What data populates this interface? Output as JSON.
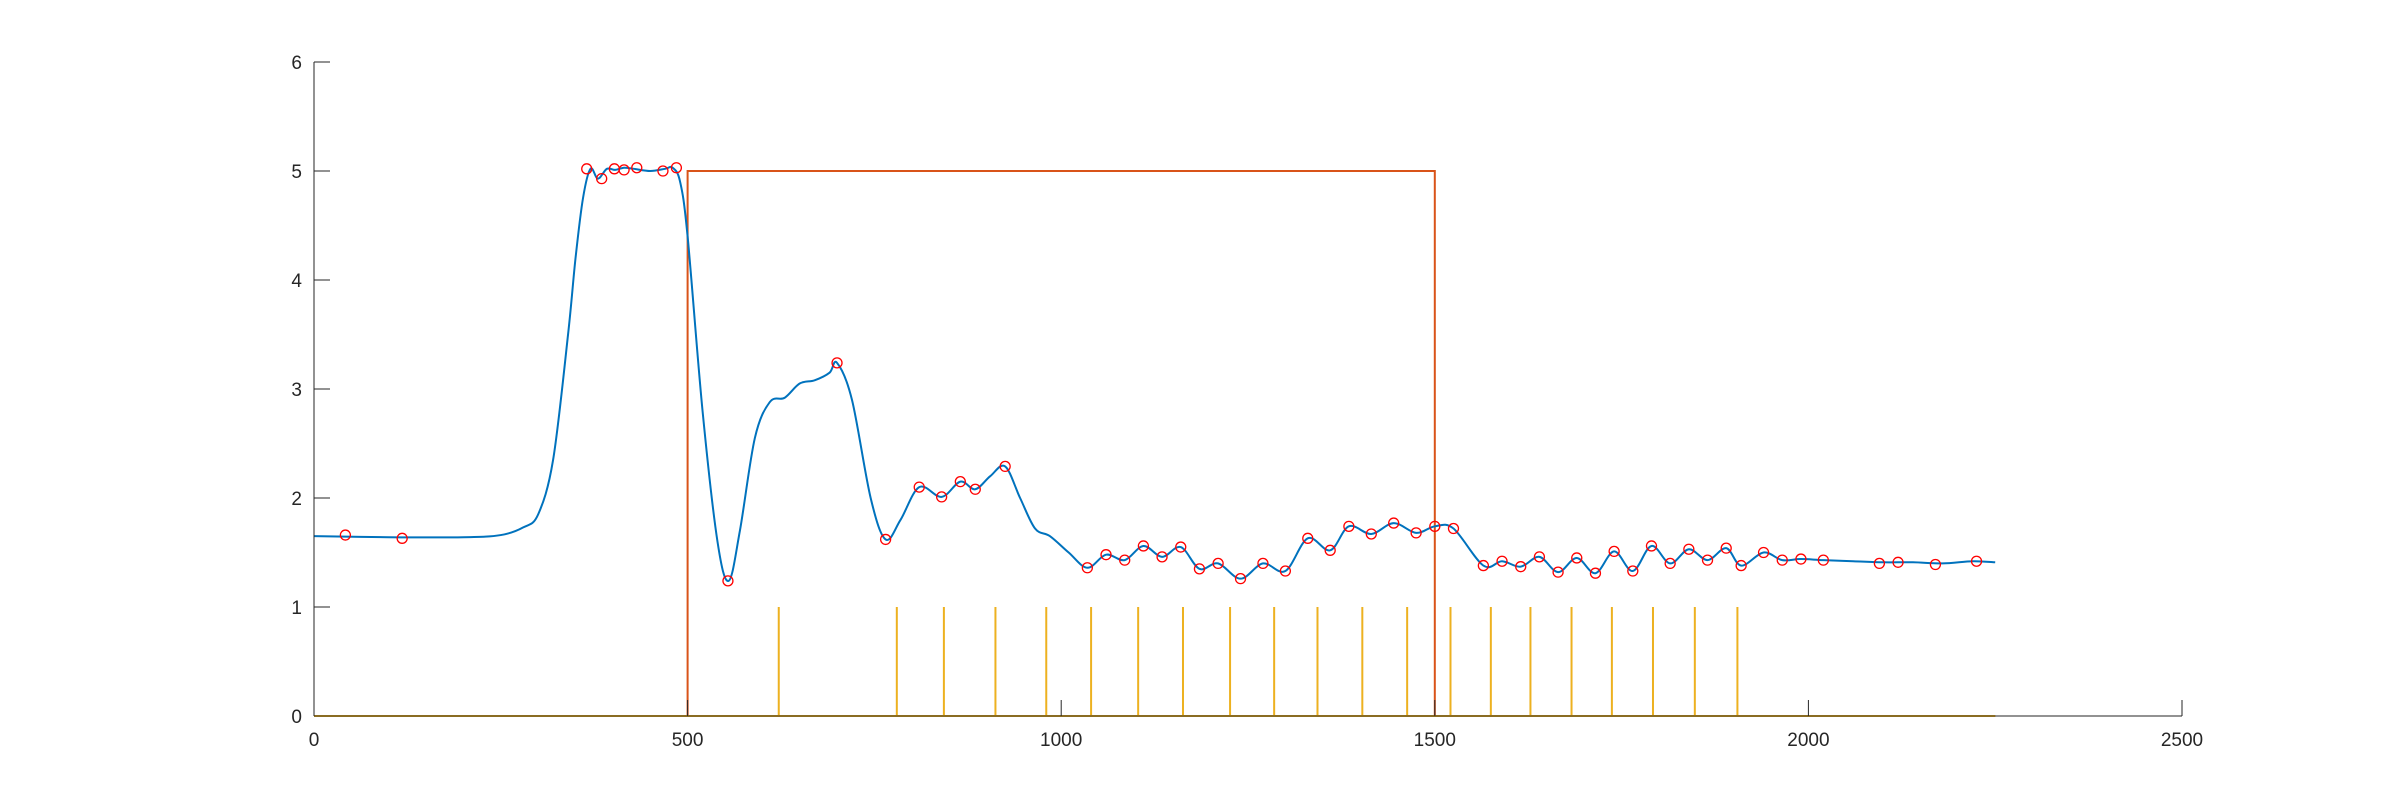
{
  "chart_data": {
    "type": "line",
    "title": "",
    "xlabel": "",
    "ylabel": "",
    "xlim": [
      0,
      2500
    ],
    "ylim": [
      0,
      6
    ],
    "x_ticks": [
      "0",
      "500",
      "1000",
      "1500",
      "2000",
      "2500"
    ],
    "y_ticks": [
      "0",
      "1",
      "2",
      "3",
      "4",
      "5",
      "6"
    ],
    "grid": false,
    "legend": "none",
    "colors": {
      "signal": "#0072BD",
      "gate": "#D95319",
      "spikes": "#EDB120",
      "markers": "#FF0000",
      "axis": "#262626"
    },
    "series": [
      {
        "kind": "smooth-line",
        "color_key": "signal",
        "x": [
          0,
          100,
          200,
          250,
          280,
          300,
          320,
          340,
          350,
          360,
          370,
          380,
          392,
          403,
          415,
          428,
          450,
          470,
          480,
          490,
          500,
          520,
          540,
          555,
          570,
          590,
          610,
          630,
          650,
          670,
          690,
          700,
          720,
          745,
          765,
          785,
          810,
          840,
          865,
          885,
          905,
          925,
          945,
          965,
          985,
          1010,
          1035,
          1060,
          1085,
          1110,
          1135,
          1160,
          1185,
          1210,
          1240,
          1270,
          1300,
          1330,
          1360,
          1385,
          1415,
          1445,
          1475,
          1500,
          1525,
          1565,
          1590,
          1615,
          1640,
          1665,
          1690,
          1715,
          1740,
          1765,
          1790,
          1815,
          1840,
          1865,
          1890,
          1910,
          1940,
          1965,
          1990,
          2020,
          2060,
          2100,
          2140,
          2180,
          2220,
          2250
        ],
        "y": [
          1.65,
          1.64,
          1.64,
          1.66,
          1.73,
          1.85,
          2.35,
          3.5,
          4.2,
          4.75,
          5.02,
          4.93,
          5.02,
          5.01,
          5.03,
          5.02,
          5.0,
          5.02,
          5.03,
          4.9,
          4.4,
          2.8,
          1.6,
          1.24,
          1.7,
          2.55,
          2.88,
          2.92,
          3.05,
          3.08,
          3.15,
          3.24,
          2.9,
          2.0,
          1.62,
          1.8,
          2.1,
          2.01,
          2.15,
          2.08,
          2.2,
          2.29,
          2.0,
          1.72,
          1.65,
          1.5,
          1.36,
          1.48,
          1.43,
          1.56,
          1.46,
          1.55,
          1.35,
          1.4,
          1.26,
          1.4,
          1.33,
          1.63,
          1.52,
          1.74,
          1.67,
          1.77,
          1.68,
          1.74,
          1.72,
          1.38,
          1.42,
          1.37,
          1.46,
          1.32,
          1.45,
          1.31,
          1.51,
          1.33,
          1.56,
          1.4,
          1.53,
          1.43,
          1.54,
          1.38,
          1.5,
          1.43,
          1.44,
          1.43,
          1.42,
          1.41,
          1.41,
          1.4,
          1.42,
          1.41
        ]
      },
      {
        "kind": "markers",
        "color_key": "markers",
        "x": [
          42,
          118,
          365,
          385,
          402,
          415,
          432,
          467,
          485,
          554,
          700,
          765,
          810,
          840,
          865,
          885,
          925,
          1035,
          1060,
          1085,
          1110,
          1135,
          1160,
          1185,
          1210,
          1240,
          1270,
          1300,
          1330,
          1360,
          1385,
          1415,
          1445,
          1475,
          1500,
          1525,
          1565,
          1590,
          1615,
          1640,
          1665,
          1690,
          1715,
          1740,
          1765,
          1790,
          1815,
          1840,
          1865,
          1890,
          1910,
          1940,
          1965,
          1990,
          2020,
          2095,
          2120,
          2170,
          2225
        ],
        "y": [
          1.66,
          1.63,
          5.02,
          4.93,
          5.02,
          5.01,
          5.03,
          5.0,
          5.03,
          1.24,
          3.24,
          1.62,
          2.1,
          2.01,
          2.15,
          2.08,
          2.29,
          1.36,
          1.48,
          1.43,
          1.56,
          1.46,
          1.55,
          1.35,
          1.4,
          1.26,
          1.4,
          1.33,
          1.63,
          1.52,
          1.74,
          1.67,
          1.77,
          1.68,
          1.74,
          1.72,
          1.38,
          1.42,
          1.37,
          1.46,
          1.32,
          1.45,
          1.31,
          1.51,
          1.33,
          1.56,
          1.4,
          1.53,
          1.43,
          1.54,
          1.38,
          1.5,
          1.43,
          1.44,
          1.43,
          1.4,
          1.41,
          1.39,
          1.42
        ]
      },
      {
        "kind": "step",
        "color_key": "gate",
        "x": [
          0,
          500,
          500,
          1500,
          1500,
          2250
        ],
        "y": [
          0,
          0,
          5,
          5,
          0,
          0
        ]
      },
      {
        "kind": "spikes",
        "color_key": "spikes",
        "x_range": [
          0,
          2250
        ],
        "x": [
          622,
          780,
          843,
          912,
          980,
          1040,
          1103,
          1163,
          1226,
          1285,
          1343,
          1403,
          1463,
          1521,
          1575,
          1628,
          1683,
          1737,
          1792,
          1848,
          1905
        ],
        "height": 1
      }
    ]
  }
}
